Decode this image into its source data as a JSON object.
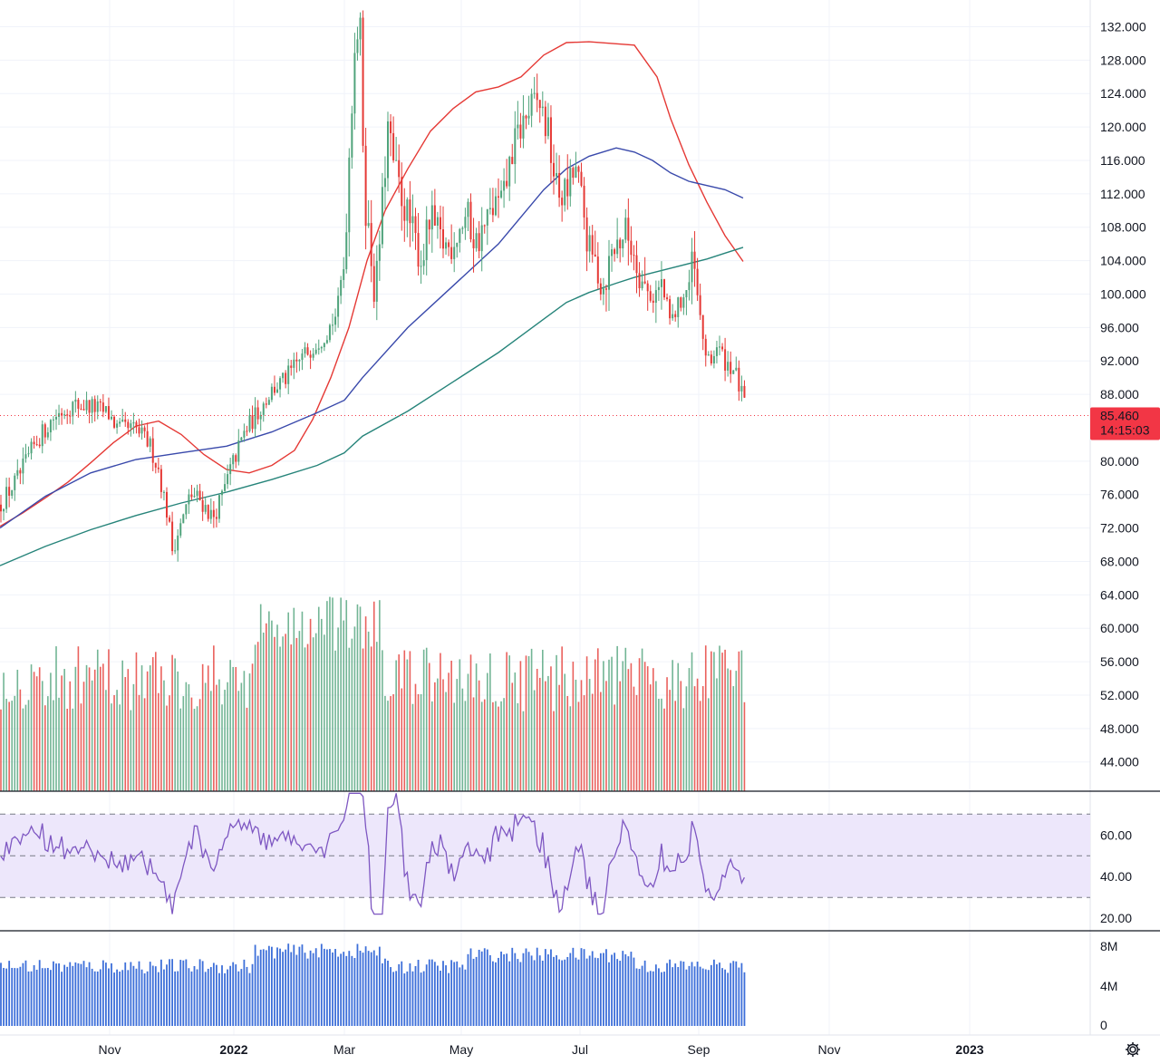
{
  "chart_data": {
    "type": "candlestick",
    "price_axis": {
      "ticks": [
        "132.000",
        "128.000",
        "124.000",
        "120.000",
        "116.000",
        "112.000",
        "108.000",
        "104.000",
        "100.000",
        "96.000",
        "92.000",
        "88.000",
        "80.000",
        "76.000",
        "72.000",
        "68.000",
        "64.000",
        "60.000",
        "56.000",
        "52.000",
        "48.000",
        "44.000"
      ],
      "range": [
        40.5,
        135.2
      ]
    },
    "last_price": {
      "value": 85.46,
      "label": "85.460",
      "countdown": "14:15:03",
      "color": "#f23645"
    },
    "time_axis": {
      "labels": [
        {
          "text": "Nov",
          "bold": false
        },
        {
          "text": "2022",
          "bold": true
        },
        {
          "text": "Mar",
          "bold": false
        },
        {
          "text": "May",
          "bold": false
        },
        {
          "text": "Jul",
          "bold": false
        },
        {
          "text": "Sep",
          "bold": false
        },
        {
          "text": "Nov",
          "bold": false
        },
        {
          "text": "2023",
          "bold": true
        }
      ]
    },
    "moving_averages": [
      {
        "color": "#e53935",
        "points": [
          [
            0,
            72.2
          ],
          [
            25,
            73.8
          ],
          [
            50,
            75.6
          ],
          [
            75,
            77.5
          ],
          [
            100,
            79.8
          ],
          [
            125,
            82.2
          ],
          [
            150,
            84.2
          ],
          [
            175,
            84.8
          ],
          [
            200,
            83.2
          ],
          [
            225,
            80.8
          ],
          [
            250,
            79.0
          ],
          [
            275,
            78.6
          ],
          [
            300,
            79.5
          ],
          [
            325,
            81.3
          ],
          [
            345,
            85.0
          ],
          [
            365,
            90.0
          ],
          [
            385,
            96.0
          ],
          [
            405,
            104.0
          ],
          [
            425,
            110.0
          ],
          [
            450,
            115.0
          ],
          [
            475,
            119.5
          ],
          [
            500,
            122.2
          ],
          [
            525,
            124.2
          ],
          [
            550,
            124.8
          ],
          [
            575,
            126.0
          ],
          [
            600,
            128.6
          ],
          [
            625,
            130.1
          ],
          [
            650,
            130.2
          ],
          [
            675,
            130.0
          ],
          [
            700,
            129.8
          ],
          [
            725,
            126.0
          ],
          [
            740,
            121.0
          ],
          [
            760,
            115.5
          ],
          [
            780,
            111.0
          ],
          [
            800,
            107.0
          ],
          [
            820,
            103.9
          ]
        ]
      },
      {
        "color": "#3949ab",
        "points": [
          [
            0,
            72.0
          ],
          [
            50,
            75.8
          ],
          [
            100,
            78.6
          ],
          [
            150,
            80.2
          ],
          [
            200,
            81.0
          ],
          [
            250,
            81.8
          ],
          [
            300,
            83.5
          ],
          [
            350,
            85.8
          ],
          [
            380,
            87.3
          ],
          [
            400,
            90.0
          ],
          [
            450,
            96.0
          ],
          [
            500,
            101.0
          ],
          [
            550,
            106.0
          ],
          [
            600,
            112.5
          ],
          [
            625,
            115.0
          ],
          [
            650,
            116.5
          ],
          [
            680,
            117.5
          ],
          [
            700,
            117.0
          ],
          [
            720,
            116.0
          ],
          [
            740,
            114.5
          ],
          [
            760,
            113.5
          ],
          [
            780,
            113.0
          ],
          [
            800,
            112.5
          ],
          [
            820,
            111.5
          ]
        ]
      },
      {
        "color": "#26847a",
        "points": [
          [
            0,
            67.5
          ],
          [
            50,
            69.8
          ],
          [
            100,
            71.8
          ],
          [
            150,
            73.5
          ],
          [
            200,
            75.0
          ],
          [
            250,
            76.3
          ],
          [
            300,
            77.8
          ],
          [
            350,
            79.5
          ],
          [
            380,
            81.0
          ],
          [
            400,
            83.0
          ],
          [
            450,
            86.0
          ],
          [
            500,
            89.5
          ],
          [
            550,
            93.0
          ],
          [
            600,
            97.0
          ],
          [
            625,
            99.0
          ],
          [
            650,
            100.2
          ],
          [
            680,
            101.3
          ],
          [
            700,
            102.0
          ],
          [
            740,
            103.1
          ],
          [
            780,
            104.2
          ],
          [
            800,
            104.9
          ],
          [
            820,
            105.6
          ]
        ]
      }
    ],
    "volume": {
      "last": 46.0
    },
    "rsi": {
      "ticks": [
        "60.00",
        "40.00",
        "20.00"
      ],
      "range": [
        14,
        81
      ],
      "band": [
        30,
        70
      ],
      "mid": 50,
      "color": "#7e57c2",
      "band_color": "#ede7fb"
    },
    "volume_pane": {
      "ticks": [
        "8M",
        "4M",
        "0"
      ],
      "range": [
        0,
        9.4
      ],
      "color": "#3d6fd9"
    },
    "colors": {
      "up": "#4fa37b",
      "down": "#e53935"
    },
    "icons": {
      "settings": "gear-icon"
    }
  }
}
